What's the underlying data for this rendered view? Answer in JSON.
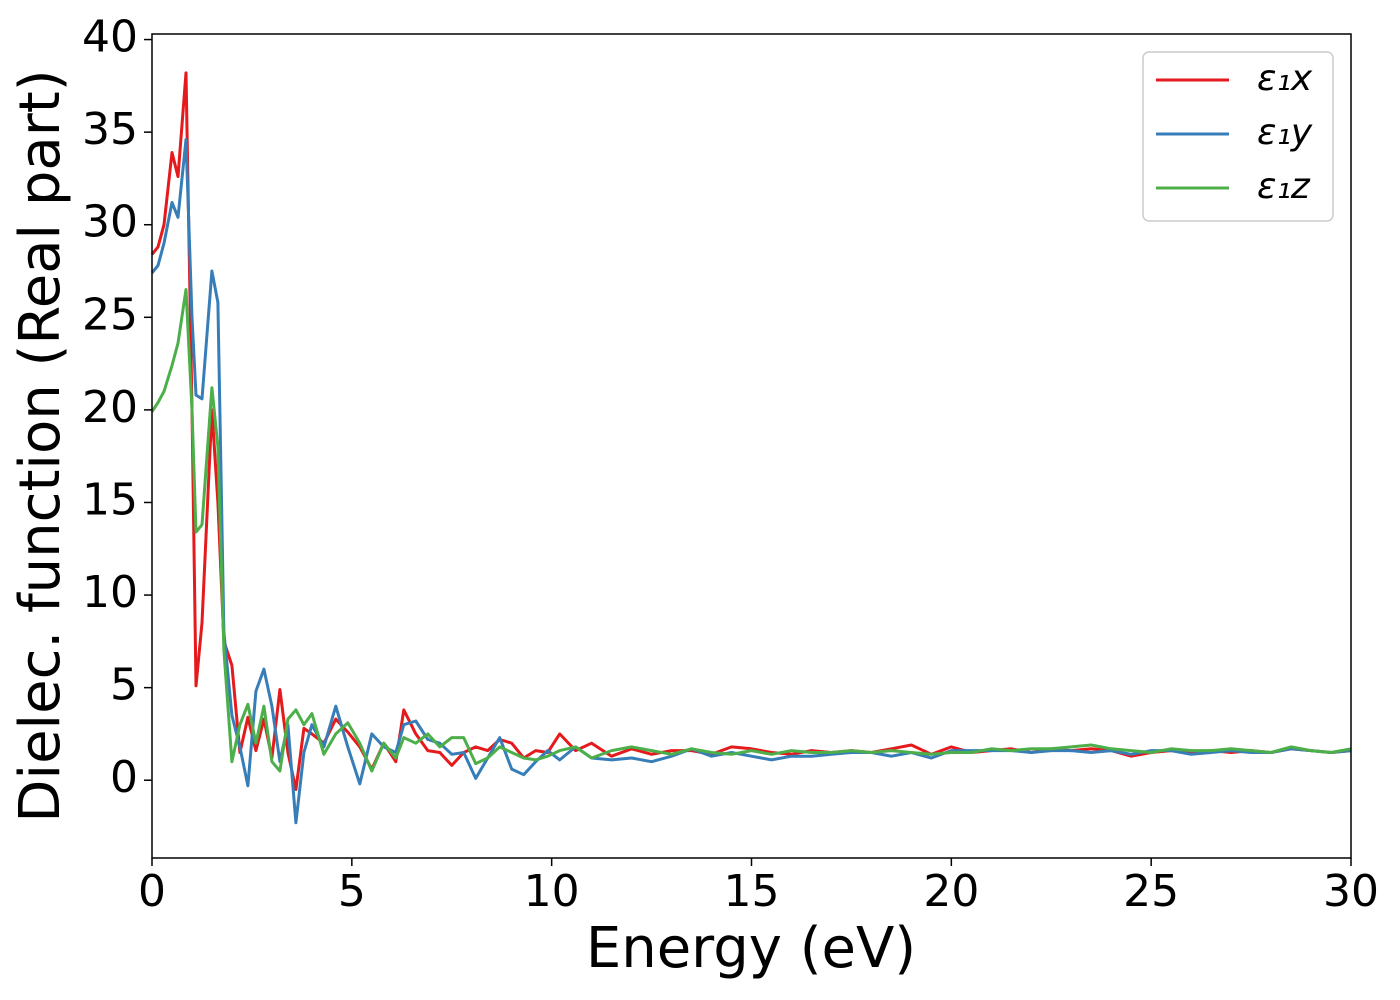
{
  "chart_data": {
    "type": "line",
    "xlabel": "Energy (eV)",
    "ylabel": "Dielec. function (Real part)",
    "x": [
      0,
      0.15,
      0.3,
      0.5,
      0.65,
      0.85,
      1.0,
      1.1,
      1.25,
      1.5,
      1.65,
      1.8,
      2.0,
      2.2,
      2.4,
      2.6,
      2.8,
      3.0,
      3.2,
      3.4,
      3.6,
      3.8,
      4.0,
      4.3,
      4.6,
      4.9,
      5.2,
      5.5,
      5.8,
      6.1,
      6.3,
      6.6,
      6.9,
      7.2,
      7.5,
      7.8,
      8.1,
      8.4,
      8.7,
      9.0,
      9.3,
      9.6,
      9.9,
      10.2,
      10.6,
      11,
      11.5,
      12,
      12.5,
      13,
      13.5,
      14,
      14.5,
      15,
      15.5,
      16,
      16.5,
      17,
      17.5,
      18,
      18.5,
      19,
      19.5,
      20,
      20.5,
      21,
      21.5,
      22,
      22.5,
      23,
      23.5,
      24,
      24.5,
      25,
      25.5,
      26,
      26.5,
      27,
      27.5,
      28,
      28.5,
      29,
      29.5,
      30
    ],
    "series": [
      {
        "name": "ε₁x",
        "color": "#e41a1c",
        "values": [
          28.4,
          28.8,
          30,
          33.9,
          32.6,
          38.2,
          20,
          5.1,
          8.5,
          20,
          15,
          7.5,
          6.2,
          1.5,
          3.4,
          1.6,
          3.3,
          1.2,
          4.9,
          1.5,
          -0.5,
          2.8,
          2.5,
          2.0,
          3.3,
          2.6,
          1.8,
          0.6,
          2.0,
          1.0,
          3.8,
          2.5,
          1.6,
          1.5,
          0.8,
          1.5,
          1.8,
          1.6,
          2.2,
          2.0,
          1.2,
          1.6,
          1.5,
          2.5,
          1.6,
          2.0,
          1.3,
          1.7,
          1.4,
          1.6,
          1.6,
          1.4,
          1.8,
          1.7,
          1.5,
          1.4,
          1.6,
          1.5,
          1.6,
          1.5,
          1.7,
          1.9,
          1.4,
          1.8,
          1.5,
          1.6,
          1.7,
          1.5,
          1.7,
          1.6,
          1.7,
          1.6,
          1.3,
          1.5,
          1.6,
          1.5,
          1.6,
          1.5,
          1.6,
          1.5,
          1.7,
          1.6,
          1.5,
          1.6
        ]
      },
      {
        "name": "ε₁y",
        "color": "#377eb8",
        "values": [
          27.4,
          27.8,
          29,
          31.2,
          30.4,
          34.6,
          25,
          20.8,
          20.6,
          27.5,
          25.8,
          8.0,
          3.5,
          1.8,
          -0.3,
          4.8,
          6.0,
          4.0,
          1.0,
          3.0,
          -2.3,
          1.5,
          3.0,
          1.8,
          4.0,
          1.8,
          -0.2,
          2.5,
          1.8,
          1.5,
          3.0,
          3.2,
          2.2,
          2.0,
          1.4,
          1.5,
          0.1,
          1.2,
          2.3,
          0.6,
          0.3,
          1.0,
          1.6,
          1.1,
          1.8,
          1.2,
          1.1,
          1.2,
          1.0,
          1.3,
          1.7,
          1.3,
          1.5,
          1.3,
          1.1,
          1.3,
          1.3,
          1.4,
          1.5,
          1.5,
          1.3,
          1.5,
          1.2,
          1.6,
          1.6,
          1.6,
          1.6,
          1.5,
          1.6,
          1.6,
          1.5,
          1.6,
          1.4,
          1.6,
          1.6,
          1.4,
          1.5,
          1.6,
          1.5,
          1.5,
          1.7,
          1.6,
          1.5,
          1.6
        ]
      },
      {
        "name": "ε₁z",
        "color": "#4daf4a",
        "values": [
          19.9,
          20.4,
          21,
          22.4,
          23.6,
          26.5,
          20,
          13.4,
          13.8,
          21.2,
          18,
          7.0,
          1.0,
          3.0,
          4.1,
          2.0,
          4.0,
          1.0,
          0.5,
          3.3,
          3.8,
          3.0,
          3.6,
          1.4,
          2.5,
          3.1,
          2.0,
          0.5,
          2.0,
          1.2,
          2.3,
          2.0,
          2.5,
          1.8,
          2.3,
          2.3,
          0.9,
          1.2,
          1.8,
          1.5,
          1.2,
          1.1,
          1.3,
          1.6,
          1.8,
          1.2,
          1.6,
          1.8,
          1.6,
          1.4,
          1.7,
          1.5,
          1.4,
          1.6,
          1.4,
          1.6,
          1.5,
          1.5,
          1.6,
          1.5,
          1.6,
          1.5,
          1.4,
          1.5,
          1.5,
          1.7,
          1.6,
          1.7,
          1.7,
          1.8,
          1.9,
          1.7,
          1.6,
          1.5,
          1.7,
          1.6,
          1.6,
          1.7,
          1.6,
          1.5,
          1.8,
          1.6,
          1.5,
          1.7
        ]
      }
    ],
    "xlim": [
      0,
      30
    ],
    "xticks": [
      0,
      5,
      10,
      15,
      20,
      25,
      30
    ],
    "ylim": [
      -4.2,
      40.3
    ],
    "yticks": [
      0,
      5,
      10,
      15,
      20,
      25,
      30,
      35,
      40
    ],
    "grid": false,
    "legend": "upper right"
  }
}
